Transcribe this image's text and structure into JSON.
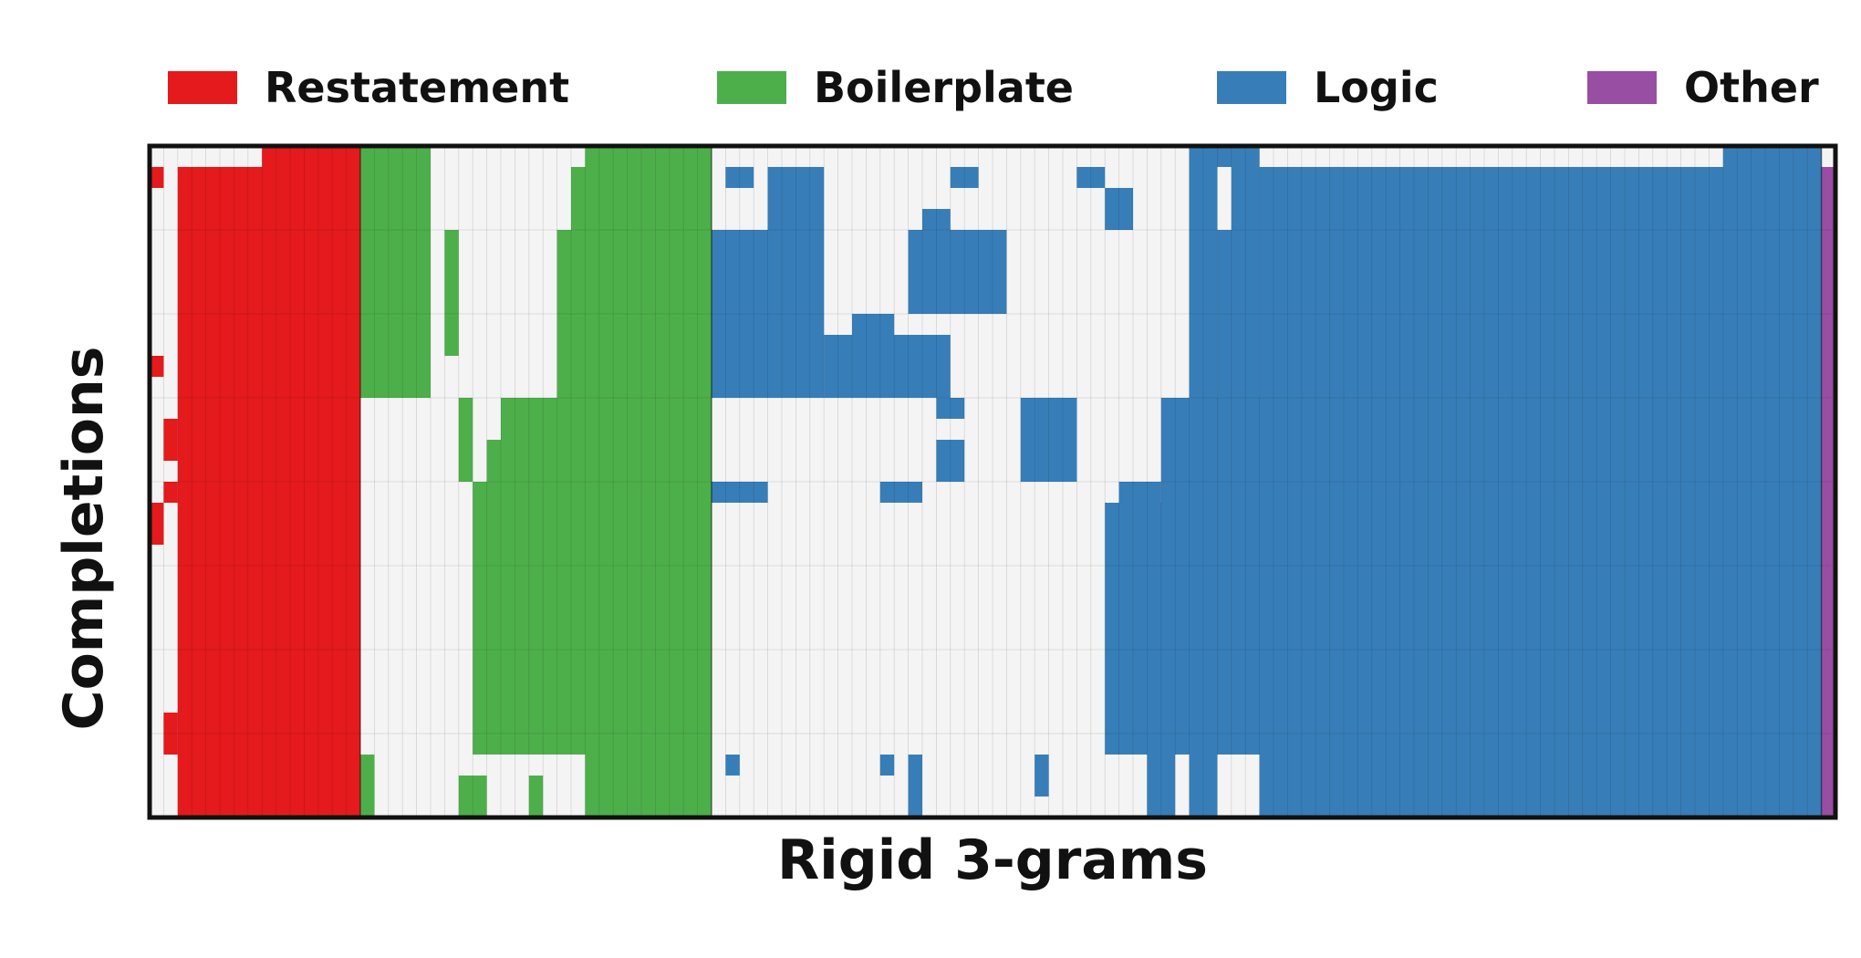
{
  "chart_data": {
    "type": "heatmap",
    "title": "",
    "xlabel": "Rigid 3-grams",
    "ylabel": "Completions",
    "legend": {
      "placement": "top",
      "entries": [
        {
          "name": "Restatement",
          "color": "#e41a1c"
        },
        {
          "name": "Boilerplate",
          "color": "#4daf4a"
        },
        {
          "name": "Logic",
          "color": "#377eb8"
        },
        {
          "name": "Other",
          "color": "#984ea3"
        }
      ]
    },
    "background_color": "#f4f4f4",
    "grid": true,
    "n_completions": 32,
    "n_ngrams": 120,
    "categories": [
      {
        "name": "Restatement",
        "color": "#e41a1c",
        "start": 0,
        "end": 15
      },
      {
        "name": "Boilerplate",
        "color": "#4daf4a",
        "start": 15,
        "end": 40
      },
      {
        "name": "Logic",
        "color": "#377eb8",
        "start": 40,
        "end": 119
      },
      {
        "name": "Other",
        "color": "#984ea3",
        "start": 119,
        "end": 120
      }
    ],
    "presence_blocks": [
      {
        "category": "Restatement",
        "cols": [
          2,
          15
        ],
        "rows": [
          1,
          32
        ]
      },
      {
        "category": "Restatement",
        "cols": [
          8,
          15
        ],
        "rows": [
          0,
          32
        ]
      },
      {
        "category": "Restatement",
        "cols": [
          0,
          1
        ],
        "rows": [
          1,
          2
        ]
      },
      {
        "category": "Restatement",
        "cols": [
          0,
          1
        ],
        "rows": [
          10,
          11
        ]
      },
      {
        "category": "Restatement",
        "cols": [
          0,
          1
        ],
        "rows": [
          17,
          19
        ]
      },
      {
        "category": "Restatement",
        "cols": [
          1,
          2
        ],
        "rows": [
          13,
          15
        ]
      },
      {
        "category": "Restatement",
        "cols": [
          1,
          2
        ],
        "rows": [
          16,
          17
        ]
      },
      {
        "category": "Restatement",
        "cols": [
          1,
          2
        ],
        "rows": [
          27,
          29
        ]
      },
      {
        "category": "Boilerplate",
        "cols": [
          15,
          20
        ],
        "rows": [
          0,
          12
        ]
      },
      {
        "category": "Boilerplate",
        "cols": [
          31,
          40
        ],
        "rows": [
          0,
          1
        ]
      },
      {
        "category": "Boilerplate",
        "cols": [
          30,
          40
        ],
        "rows": [
          1,
          4
        ]
      },
      {
        "category": "Boilerplate",
        "cols": [
          29,
          40
        ],
        "rows": [
          4,
          12
        ]
      },
      {
        "category": "Boilerplate",
        "cols": [
          25,
          40
        ],
        "rows": [
          12,
          14
        ]
      },
      {
        "category": "Boilerplate",
        "cols": [
          24,
          40
        ],
        "rows": [
          14,
          16
        ]
      },
      {
        "category": "Boilerplate",
        "cols": [
          23,
          40
        ],
        "rows": [
          16,
          29
        ]
      },
      {
        "category": "Boilerplate",
        "cols": [
          31,
          40
        ],
        "rows": [
          29,
          32
        ]
      },
      {
        "category": "Boilerplate",
        "cols": [
          22,
          23
        ],
        "rows": [
          12,
          16
        ]
      },
      {
        "category": "Boilerplate",
        "cols": [
          21,
          22
        ],
        "rows": [
          4,
          10
        ]
      },
      {
        "category": "Boilerplate",
        "cols": [
          15,
          16
        ],
        "rows": [
          29,
          32
        ]
      },
      {
        "category": "Boilerplate",
        "cols": [
          22,
          24
        ],
        "rows": [
          30,
          32
        ]
      },
      {
        "category": "Boilerplate",
        "cols": [
          27,
          28
        ],
        "rows": [
          30,
          32
        ]
      },
      {
        "category": "Logic",
        "cols": [
          40,
          48
        ],
        "rows": [
          4,
          12
        ]
      },
      {
        "category": "Logic",
        "cols": [
          44,
          48
        ],
        "rows": [
          1,
          4
        ]
      },
      {
        "category": "Logic",
        "cols": [
          48,
          57
        ],
        "rows": [
          9,
          12
        ]
      },
      {
        "category": "Logic",
        "cols": [
          50,
          53
        ],
        "rows": [
          8,
          10
        ]
      },
      {
        "category": "Logic",
        "cols": [
          54,
          61
        ],
        "rows": [
          4,
          8
        ]
      },
      {
        "category": "Logic",
        "cols": [
          62,
          66
        ],
        "rows": [
          12,
          16
        ]
      },
      {
        "category": "Logic",
        "cols": [
          40,
          44
        ],
        "rows": [
          16,
          17
        ]
      },
      {
        "category": "Logic",
        "cols": [
          52,
          55
        ],
        "rows": [
          16,
          17
        ]
      },
      {
        "category": "Logic",
        "cols": [
          56,
          58
        ],
        "rows": [
          12,
          13
        ]
      },
      {
        "category": "Logic",
        "cols": [
          56,
          58
        ],
        "rows": [
          14,
          16
        ]
      },
      {
        "category": "Logic",
        "cols": [
          57,
          59
        ],
        "rows": [
          1,
          2
        ]
      },
      {
        "category": "Logic",
        "cols": [
          55,
          57
        ],
        "rows": [
          3,
          4
        ]
      },
      {
        "category": "Logic",
        "cols": [
          41,
          43
        ],
        "rows": [
          1,
          2
        ]
      },
      {
        "category": "Logic",
        "cols": [
          66,
          68
        ],
        "rows": [
          1,
          2
        ]
      },
      {
        "category": "Logic",
        "cols": [
          68,
          70
        ],
        "rows": [
          2,
          4
        ]
      },
      {
        "category": "Logic",
        "cols": [
          63,
          64
        ],
        "rows": [
          29,
          31
        ]
      },
      {
        "category": "Logic",
        "cols": [
          71,
          73
        ],
        "rows": [
          29,
          32
        ]
      },
      {
        "category": "Logic",
        "cols": [
          54,
          55
        ],
        "rows": [
          29,
          32
        ]
      },
      {
        "category": "Logic",
        "cols": [
          41,
          42
        ],
        "rows": [
          29,
          30
        ]
      },
      {
        "category": "Logic",
        "cols": [
          52,
          53
        ],
        "rows": [
          29,
          30
        ]
      },
      {
        "category": "Logic",
        "cols": [
          69,
          72
        ],
        "rows": [
          16,
          17
        ]
      },
      {
        "category": "Logic",
        "cols": [
          68,
          119
        ],
        "rows": [
          17,
          29
        ]
      },
      {
        "category": "Logic",
        "cols": [
          72,
          119
        ],
        "rows": [
          12,
          17
        ]
      },
      {
        "category": "Logic",
        "cols": [
          79,
          119
        ],
        "rows": [
          1,
          32
        ]
      },
      {
        "category": "Logic",
        "cols": [
          74,
          79
        ],
        "rows": [
          0,
          1
        ]
      },
      {
        "category": "Logic",
        "cols": [
          74,
          76
        ],
        "rows": [
          1,
          12
        ]
      },
      {
        "category": "Logic",
        "cols": [
          76,
          79
        ],
        "rows": [
          4,
          12
        ]
      },
      {
        "category": "Logic",
        "cols": [
          77,
          79
        ],
        "rows": [
          1,
          4
        ]
      },
      {
        "category": "Logic",
        "cols": [
          74,
          76
        ],
        "rows": [
          12,
          18
        ]
      },
      {
        "category": "Logic",
        "cols": [
          74,
          76
        ],
        "rows": [
          29,
          32
        ]
      },
      {
        "category": "Logic",
        "cols": [
          112,
          119
        ],
        "rows": [
          0,
          1
        ]
      },
      {
        "category": "Other",
        "cols": [
          119,
          120
        ],
        "rows": [
          1,
          32
        ]
      }
    ]
  }
}
